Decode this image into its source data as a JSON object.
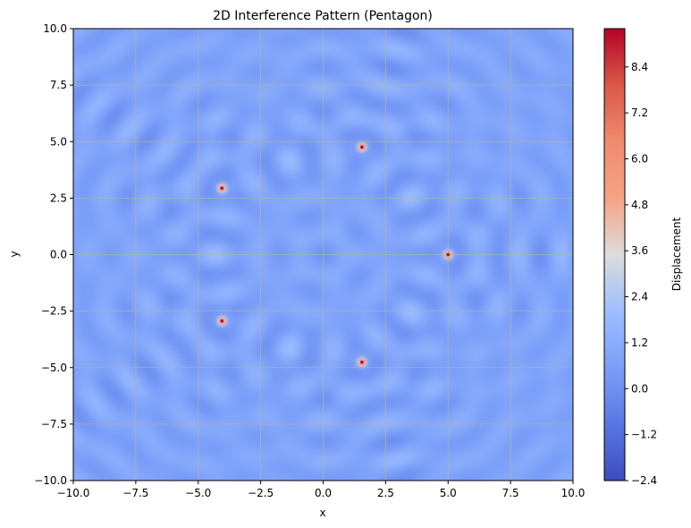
{
  "chart_data": {
    "type": "heatmap",
    "title": "2D Interference Pattern (Pentagon)",
    "xlabel": "x",
    "ylabel": "y",
    "xlim": [
      -10,
      10
    ],
    "ylim": [
      -10,
      10
    ],
    "xticks": [
      -10,
      -7.5,
      -5,
      -2.5,
      0,
      2.5,
      5,
      7.5,
      10
    ],
    "yticks": [
      -10,
      -7.5,
      -5,
      -2.5,
      0,
      2.5,
      5,
      7.5,
      10
    ],
    "xtick_labels": [
      "−10.0",
      "−7.5",
      "−5.0",
      "−2.5",
      "0.0",
      "2.5",
      "5.0",
      "7.5",
      "10.0"
    ],
    "ytick_labels": [
      "−10.0",
      "−7.5",
      "−5.0",
      "−2.5",
      "0.0",
      "2.5",
      "5.0",
      "7.5",
      "10.0"
    ],
    "grid": true,
    "colormap": "coolwarm",
    "colorbar": {
      "label": "Displacement",
      "range": [
        -2.4,
        9.4
      ],
      "ticks": [
        -2.4,
        -1.2,
        0.0,
        1.2,
        2.4,
        3.6,
        4.8,
        6.0,
        7.2,
        8.4
      ],
      "tick_labels": [
        "−2.4",
        "−1.2",
        "0.0",
        "1.2",
        "2.4",
        "3.6",
        "4.8",
        "6.0",
        "7.2",
        "8.4"
      ]
    },
    "sources": [
      {
        "x": 5.0,
        "y": 0.0
      },
      {
        "x": 1.55,
        "y": 4.76
      },
      {
        "x": -4.05,
        "y": 2.94
      },
      {
        "x": -4.05,
        "y": -2.94
      },
      {
        "x": 1.55,
        "y": -4.76
      }
    ],
    "peak_value": 9.4,
    "background_value": 0.8
  }
}
